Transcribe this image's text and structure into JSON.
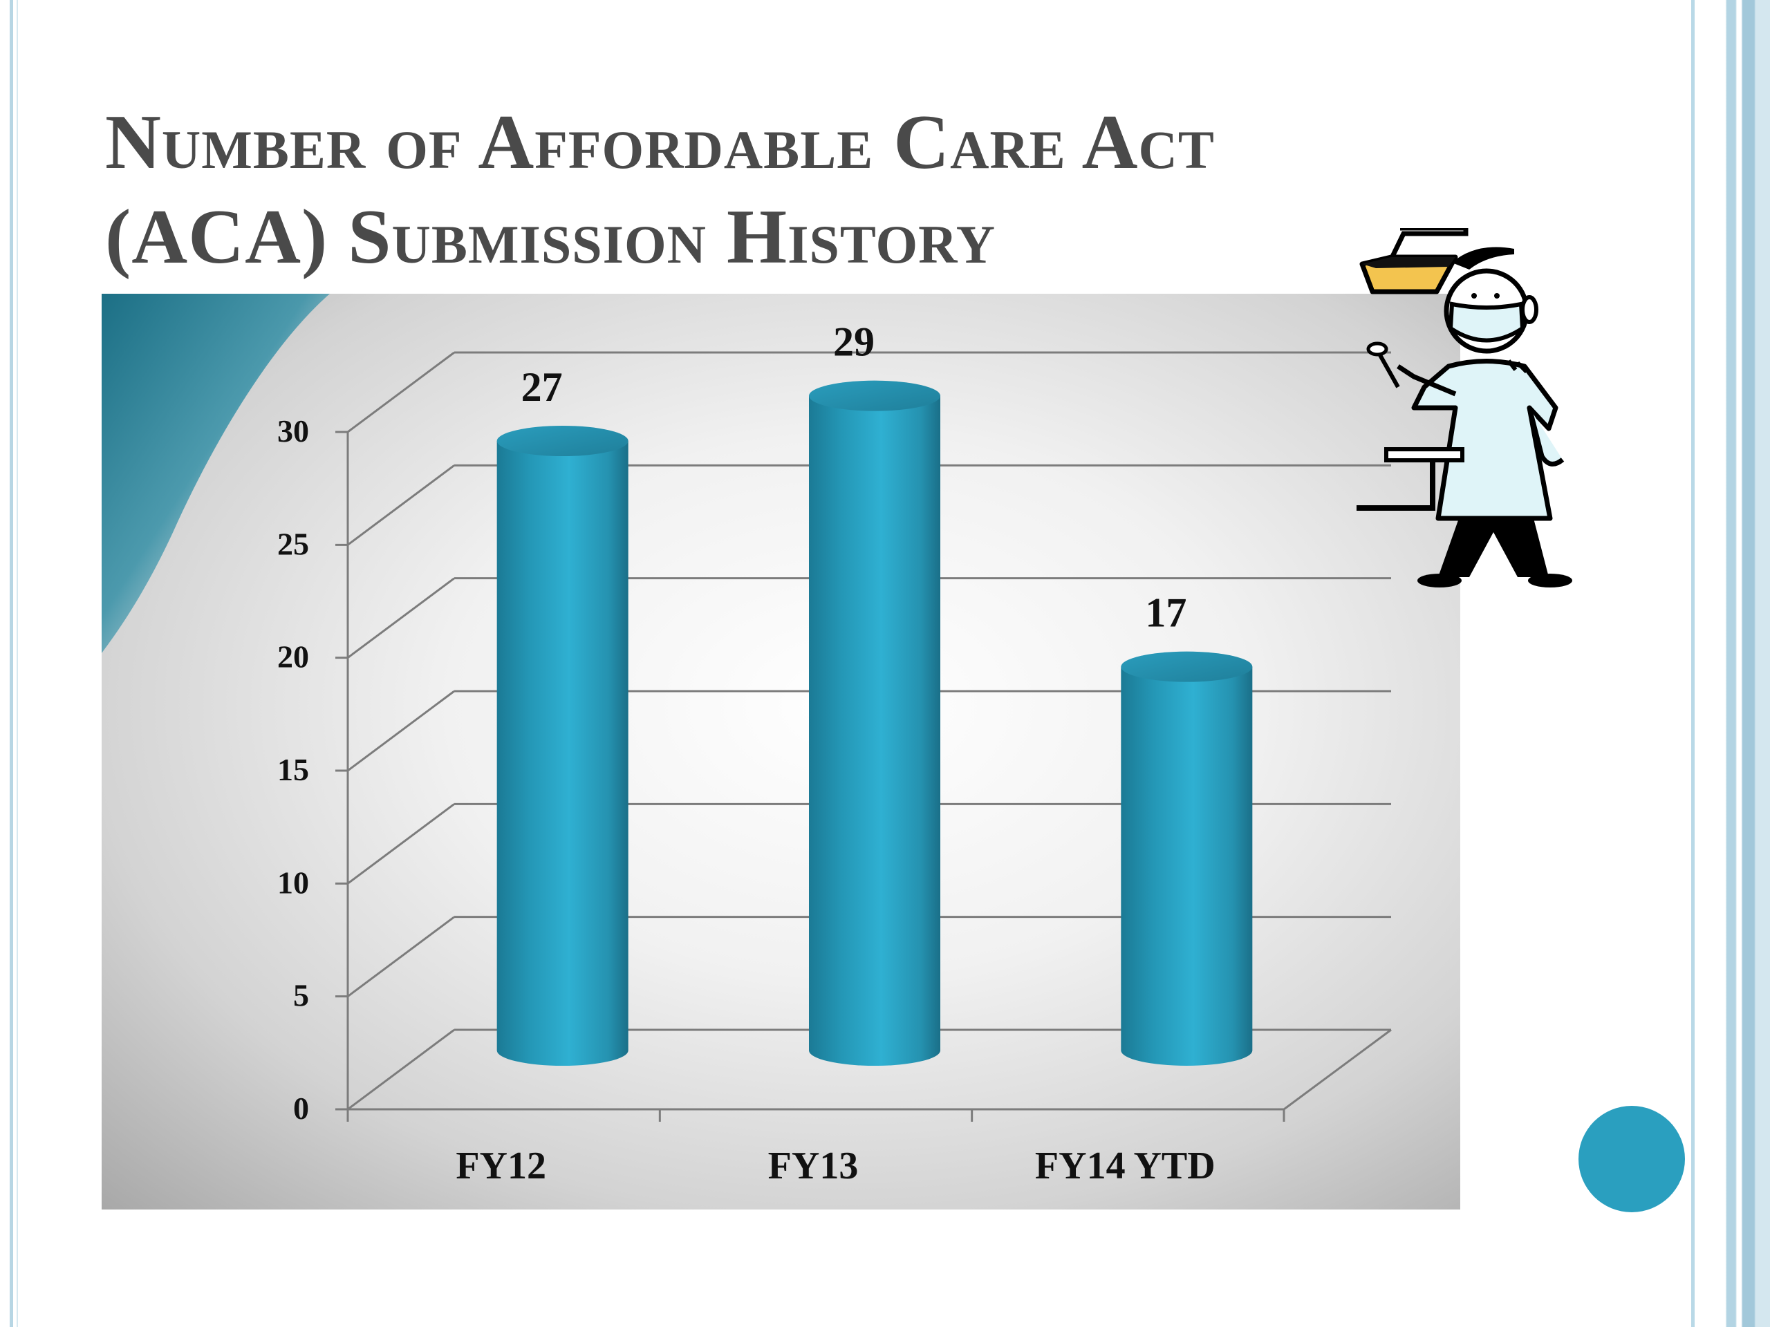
{
  "slide": {
    "title_line1": "Number of Affordable Care Act",
    "title_line2": "(ACA) Submission History"
  },
  "colors": {
    "bar": "#2aa6c9",
    "bar_dark": "#1a6f88",
    "title": "#4a4a4a",
    "accent_dot": "#2a9fbf",
    "border_blue": "#a9cfe0"
  },
  "illustration": {
    "icon": "dentist-icon"
  },
  "chart_data": {
    "type": "bar",
    "style": "3d-cylinder",
    "categories": [
      "FY12",
      "FY13",
      "FY14 YTD"
    ],
    "values": [
      27,
      29,
      17
    ],
    "data_labels": [
      "27",
      "29",
      "17"
    ],
    "yticks": [
      0,
      5,
      10,
      15,
      20,
      25,
      30
    ],
    "ytick_labels": [
      "0",
      "5",
      "10",
      "15",
      "20",
      "25",
      "30"
    ],
    "ylim": [
      0,
      30
    ],
    "grid": true,
    "legend": "none"
  }
}
